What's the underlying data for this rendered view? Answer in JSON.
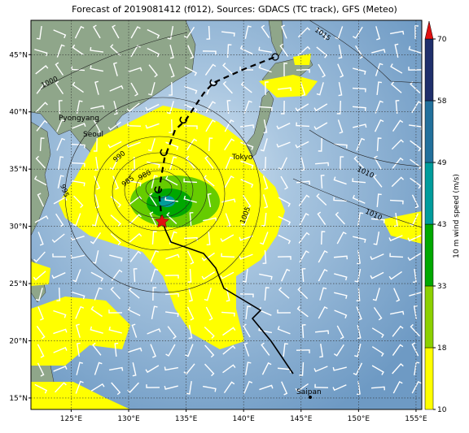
{
  "title": "Forecast of 2019081412 (f012), Sources: GDACS (TC track), GFS (Meteo)",
  "map": {
    "lonlim": [
      121.5,
      155.5
    ],
    "latlim": [
      14,
      48
    ],
    "lon_ticks": [
      {
        "value": 125,
        "label": "125°E"
      },
      {
        "value": 130,
        "label": "130°E"
      },
      {
        "value": 135,
        "label": "135°E"
      },
      {
        "value": 140,
        "label": "140°E"
      },
      {
        "value": 145,
        "label": "145°E"
      },
      {
        "value": 150,
        "label": "150°E"
      },
      {
        "value": 155,
        "label": "155°E"
      }
    ],
    "lat_ticks": [
      {
        "value": 15,
        "label": "15°N"
      },
      {
        "value": 20,
        "label": "20°N"
      },
      {
        "value": 25,
        "label": "25°N"
      },
      {
        "value": 30,
        "label": "30°N"
      },
      {
        "value": 35,
        "label": "35°N"
      },
      {
        "value": 40,
        "label": "40°N"
      },
      {
        "value": 45,
        "label": "45°N"
      }
    ],
    "places": [
      "Pyongyang",
      "Seoul",
      "Tokyo",
      "Saipan"
    ],
    "isobar_labels": [
      "1015",
      "1000",
      "990",
      "985",
      "980",
      "995",
      "1005",
      "1010",
      "1010"
    ]
  },
  "colorbar": {
    "label": "10 m wind speed (m/s)",
    "ticks": [
      10,
      18,
      33,
      43,
      49,
      58,
      70
    ],
    "colors": [
      "#ffff00",
      "#8cd000",
      "#00a800",
      "#009c9c",
      "#22709c",
      "#1f2f6b"
    ],
    "extend_color": "#e01010"
  }
}
